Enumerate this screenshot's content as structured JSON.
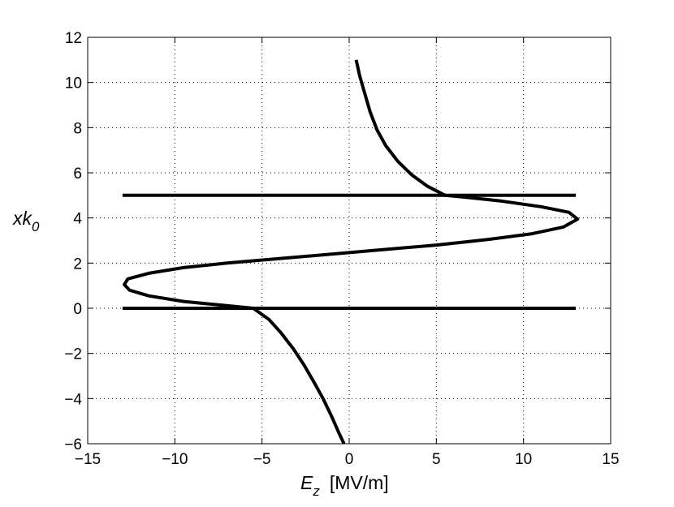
{
  "chart_data": {
    "type": "line",
    "xlabel_main": "E",
    "xlabel_sub": "z",
    "xlabel_unit": "[MV/m]",
    "ylabel_main": "xk",
    "ylabel_sub": "0",
    "xlim": [
      -15,
      15
    ],
    "ylim": [
      -6,
      12
    ],
    "xticks": [
      -15,
      -10,
      -5,
      0,
      5,
      10,
      15
    ],
    "yticks": [
      -6,
      -4,
      -2,
      0,
      2,
      4,
      6,
      8,
      10,
      12
    ],
    "grid": true,
    "grid_style": "dotted",
    "series_color": "#000000",
    "series": [
      {
        "points": [
          [
            -0.3,
            -6.0
          ],
          [
            -0.6,
            -5.5
          ],
          [
            -1.0,
            -4.8
          ],
          [
            -1.5,
            -4.0
          ],
          [
            -2.0,
            -3.3
          ],
          [
            -2.6,
            -2.5
          ],
          [
            -3.2,
            -1.8
          ],
          [
            -3.9,
            -1.1
          ],
          [
            -4.6,
            -0.5
          ],
          [
            -5.5,
            0.0
          ],
          [
            -7.5,
            0.15
          ],
          [
            -9.5,
            0.3
          ],
          [
            -11.5,
            0.55
          ],
          [
            -12.6,
            0.8
          ],
          [
            -12.9,
            1.05
          ],
          [
            -12.7,
            1.3
          ],
          [
            -11.5,
            1.55
          ],
          [
            -9.5,
            1.8
          ],
          [
            -7.0,
            2.0
          ],
          [
            -4.0,
            2.2
          ],
          [
            -1.0,
            2.4
          ],
          [
            2.0,
            2.6
          ],
          [
            5.0,
            2.8
          ],
          [
            8.0,
            3.05
          ],
          [
            10.5,
            3.3
          ],
          [
            12.3,
            3.6
          ],
          [
            13.1,
            3.95
          ],
          [
            12.6,
            4.25
          ],
          [
            11.0,
            4.5
          ],
          [
            8.7,
            4.75
          ],
          [
            6.5,
            4.93
          ],
          [
            5.5,
            5.0
          ],
          [
            4.5,
            5.4
          ],
          [
            3.6,
            5.9
          ],
          [
            2.8,
            6.5
          ],
          [
            2.1,
            7.2
          ],
          [
            1.6,
            7.9
          ],
          [
            1.2,
            8.7
          ],
          [
            0.9,
            9.5
          ],
          [
            0.6,
            10.3
          ],
          [
            0.4,
            11.0
          ]
        ]
      },
      {
        "points": [
          [
            -13.0,
            0.0
          ],
          [
            13.0,
            0.0
          ]
        ]
      },
      {
        "points": [
          [
            -13.0,
            5.0
          ],
          [
            13.0,
            5.0
          ]
        ]
      }
    ]
  }
}
